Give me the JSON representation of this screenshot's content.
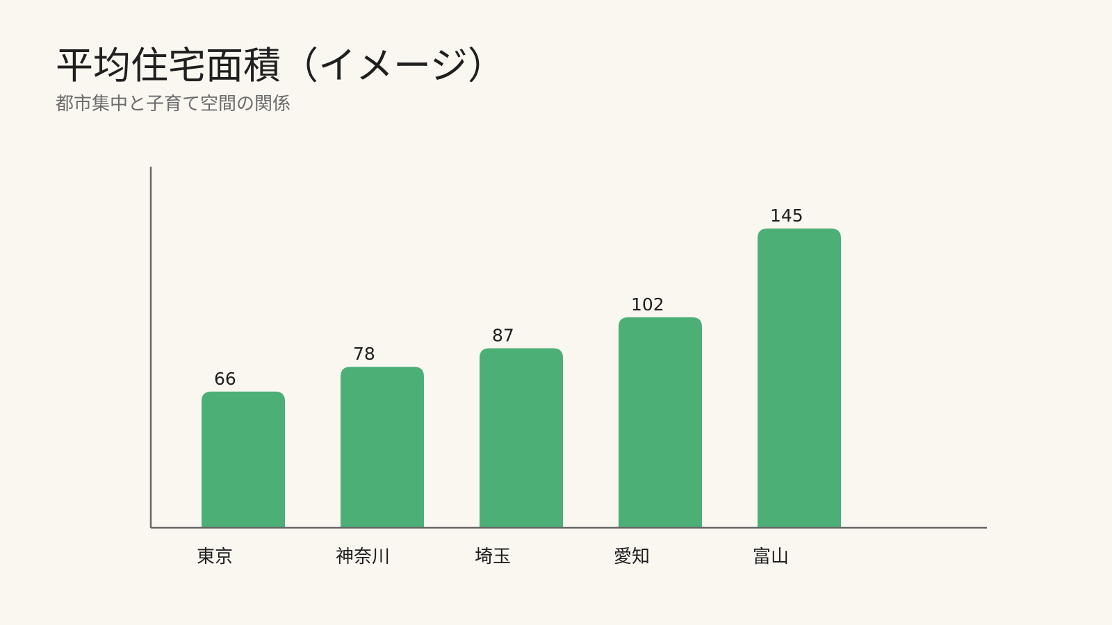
{
  "colors": {
    "background": "#faf6f0",
    "bar": "#4caf76",
    "axis": "#666666",
    "text": "#1f1f1f",
    "subtitle": "#6b6b6b"
  },
  "chart_data": {
    "type": "bar",
    "title": "平均住宅面積（イメージ）",
    "subtitle": "都市集中と子育て空間の関係",
    "xlabel": "",
    "ylabel": "",
    "categories": [
      "東京",
      "神奈川",
      "埼玉",
      "愛知",
      "富山"
    ],
    "values": [
      66,
      78,
      87,
      102,
      145
    ],
    "ylim": [
      0,
      175
    ],
    "grid": false,
    "legend": "none",
    "data_labels": true
  }
}
